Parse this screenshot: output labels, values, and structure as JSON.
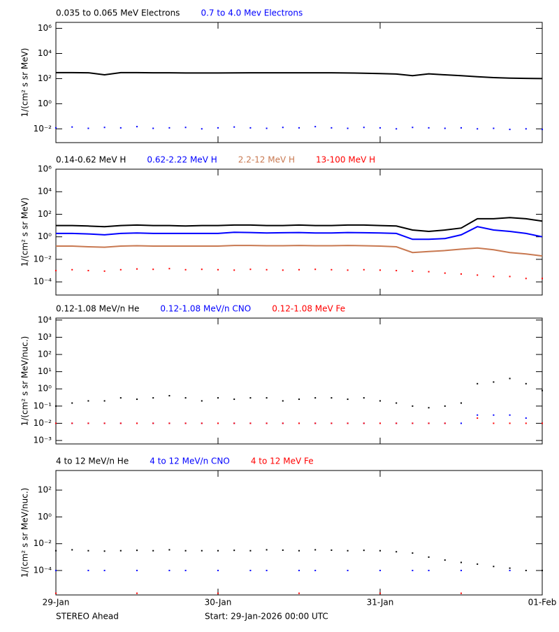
{
  "chart_data": [
    {
      "type": "scatter",
      "ylabel": "1/(cm² s sr MeV)",
      "log_y": true,
      "xlim": [
        0,
        3
      ],
      "ylim": [
        0.0008,
        3000000
      ],
      "yticks": [
        {
          "value": 1000000,
          "label": "10⁶"
        },
        {
          "value": 10000,
          "label": "10⁴"
        },
        {
          "value": 100,
          "label": "10²"
        },
        {
          "value": 1,
          "label": "10⁰"
        },
        {
          "value": 0.01,
          "label": "10⁻²"
        }
      ],
      "x": [
        0,
        0.1,
        0.2,
        0.3,
        0.4,
        0.5,
        0.6,
        0.7,
        0.8,
        0.9,
        1,
        1.1,
        1.2,
        1.3,
        1.4,
        1.5,
        1.6,
        1.7,
        1.8,
        1.9,
        2,
        2.1,
        2.2,
        2.3,
        2.4,
        2.5,
        2.6,
        2.7,
        2.8,
        2.9,
        3
      ],
      "series": [
        {
          "name": "0.035 to 0.065 MeV Electrons",
          "color": "#000000",
          "mode": "line",
          "values": [
            300,
            300,
            290,
            200,
            300,
            300,
            290,
            290,
            280,
            280,
            280,
            285,
            290,
            290,
            290,
            290,
            290,
            290,
            280,
            270,
            250,
            230,
            170,
            240,
            200,
            170,
            140,
            120,
            110,
            105,
            100
          ]
        },
        {
          "name": "0.7 to 4.0 Mev Electrons",
          "color": "#0000ff",
          "mode": "dots",
          "values": [
            0.012,
            0.014,
            0.011,
            0.013,
            0.012,
            0.015,
            0.011,
            0.012,
            0.013,
            0.01,
            0.012,
            0.014,
            0.012,
            0.011,
            0.013,
            0.012,
            0.015,
            0.012,
            0.011,
            0.013,
            0.012,
            0.01,
            0.013,
            0.012,
            0.011,
            0.012,
            0.01,
            0.011,
            0.009,
            0.01,
            0.009
          ]
        }
      ]
    },
    {
      "type": "scatter",
      "ylabel": "1/(cm² s sr MeV)",
      "log_y": true,
      "xlim": [
        0,
        3
      ],
      "ylim": [
        6.8e-06,
        1000000
      ],
      "yticks": [
        {
          "value": 1000000,
          "label": "10⁶"
        },
        {
          "value": 10000,
          "label": "10⁴"
        },
        {
          "value": 100,
          "label": "10²"
        },
        {
          "value": 1,
          "label": "10⁰"
        },
        {
          "value": 0.01,
          "label": "10⁻²"
        },
        {
          "value": 0.0001,
          "label": "10⁻⁴"
        }
      ],
      "x": [
        0,
        0.1,
        0.2,
        0.3,
        0.4,
        0.5,
        0.6,
        0.7,
        0.8,
        0.9,
        1,
        1.1,
        1.2,
        1.3,
        1.4,
        1.5,
        1.6,
        1.7,
        1.8,
        1.9,
        2,
        2.1,
        2.2,
        2.3,
        2.4,
        2.5,
        2.6,
        2.7,
        2.8,
        2.9,
        3
      ],
      "series": [
        {
          "name": "0.14-0.62 MeV H",
          "color": "#000000",
          "mode": "line",
          "values": [
            10,
            10,
            9,
            8,
            10,
            11,
            10,
            10,
            9,
            10,
            10,
            11,
            11,
            10,
            10,
            11,
            10,
            10,
            11,
            11,
            10,
            9,
            4,
            3,
            4,
            6,
            40,
            40,
            50,
            40,
            25
          ]
        },
        {
          "name": "0.62-2.22 MeV H",
          "color": "#0000ff",
          "mode": "line",
          "values": [
            2,
            2,
            1.8,
            1.5,
            2,
            2.2,
            2,
            2,
            2,
            2,
            2,
            2.5,
            2.4,
            2.2,
            2.3,
            2.4,
            2.2,
            2.2,
            2.4,
            2.3,
            2.2,
            2,
            0.6,
            0.6,
            0.7,
            1.5,
            8,
            4,
            3,
            2,
            1
          ]
        },
        {
          "name": "2.2-12 MeV H",
          "color": "#c87850",
          "mode": "line",
          "values": [
            0.15,
            0.15,
            0.13,
            0.12,
            0.15,
            0.16,
            0.15,
            0.15,
            0.15,
            0.15,
            0.15,
            0.17,
            0.17,
            0.16,
            0.16,
            0.17,
            0.16,
            0.16,
            0.17,
            0.16,
            0.15,
            0.13,
            0.04,
            0.05,
            0.06,
            0.08,
            0.1,
            0.07,
            0.04,
            0.03,
            0.02
          ]
        },
        {
          "name": "13-100 MeV H",
          "color": "#ff0000",
          "mode": "dots",
          "values": [
            0.001,
            0.0012,
            0.001,
            0.0009,
            0.0012,
            0.0014,
            0.0013,
            0.0015,
            0.0012,
            0.0013,
            0.0012,
            0.0011,
            0.0013,
            0.0012,
            0.0011,
            0.0012,
            0.0013,
            0.0012,
            0.0011,
            0.0012,
            0.0011,
            0.001,
            0.0009,
            0.0008,
            0.0006,
            0.0005,
            0.0004,
            0.0003,
            0.0003,
            0.0002,
            0.0002
          ]
        }
      ]
    },
    {
      "type": "scatter",
      "ylabel": "1/(cm² s sr MeV/nuc.)",
      "log_y": true,
      "xlim": [
        0,
        3
      ],
      "ylim": [
        0.00063,
        13000
      ],
      "yticks": [
        {
          "value": 10000,
          "label": "10⁴"
        },
        {
          "value": 1000,
          "label": "10³"
        },
        {
          "value": 100,
          "label": "10²"
        },
        {
          "value": 10,
          "label": "10¹"
        },
        {
          "value": 1,
          "label": "10⁰"
        },
        {
          "value": 0.1,
          "label": "10⁻¹"
        },
        {
          "value": 0.01,
          "label": "10⁻²"
        },
        {
          "value": 0.001,
          "label": "10⁻³"
        }
      ],
      "x": [
        0,
        0.1,
        0.2,
        0.3,
        0.4,
        0.5,
        0.6,
        0.7,
        0.8,
        0.9,
        1,
        1.1,
        1.2,
        1.3,
        1.4,
        1.5,
        1.6,
        1.7,
        1.8,
        1.9,
        2,
        2.1,
        2.2,
        2.3,
        2.4,
        2.5,
        2.6,
        2.7,
        2.8,
        2.9,
        3
      ],
      "series": [
        {
          "name": "0.12-1.08 MeV/n He",
          "color": "#000000",
          "mode": "dots",
          "values": [
            0.1,
            0.15,
            0.2,
            0.2,
            0.3,
            0.25,
            0.3,
            0.4,
            0.3,
            0.2,
            0.3,
            0.25,
            0.3,
            0.3,
            0.2,
            0.25,
            0.3,
            0.3,
            0.25,
            0.3,
            0.2,
            0.15,
            0.1,
            0.08,
            0.1,
            0.15,
            2,
            2.5,
            4,
            2,
            0.8
          ]
        },
        {
          "name": "0.12-1.08 MeV/n CNO",
          "color": "#0000ff",
          "mode": "dots",
          "values": [
            0.01,
            0.01,
            0.01,
            0.01,
            0.01,
            0.01,
            0.01,
            0.01,
            0.01,
            0.01,
            0.01,
            0.01,
            0.01,
            0.01,
            0.01,
            0.01,
            0.01,
            0.01,
            0.01,
            0.01,
            0.01,
            0.01,
            0.01,
            0.01,
            0.01,
            0.01,
            0.03,
            0.03,
            0.03,
            0.02,
            0.01
          ]
        },
        {
          "name": "0.12-1.08 MeV Fe",
          "color": "#ff0000",
          "mode": "dots",
          "values": [
            0.01,
            0.01,
            0.01,
            0.01,
            0.01,
            0.01,
            0.01,
            0.01,
            0.01,
            0.01,
            0.01,
            0.01,
            0.01,
            0.01,
            0.01,
            0.01,
            0.01,
            0.01,
            0.01,
            0.01,
            0.01,
            0.01,
            0.01,
            0.01,
            0.01,
            null,
            0.02,
            0.01,
            0.01,
            0.01,
            0.01
          ]
        }
      ]
    },
    {
      "type": "scatter",
      "ylabel": "1/(cm² s sr MeV/nuc.)",
      "log_y": true,
      "xlim": [
        0,
        3
      ],
      "ylim": [
        1.5e-06,
        2900
      ],
      "yticks": [
        {
          "value": 100,
          "label": "10²"
        },
        {
          "value": 1,
          "label": "10⁰"
        },
        {
          "value": 0.01,
          "label": "10⁻²"
        },
        {
          "value": 0.0001,
          "label": "10⁻⁴"
        }
      ],
      "xticks": [
        {
          "value": 0,
          "label": "29-Jan"
        },
        {
          "value": 1,
          "label": "30-Jan"
        },
        {
          "value": 2,
          "label": "31-Jan"
        },
        {
          "value": 3,
          "label": "01-Feb"
        }
      ],
      "x": [
        0,
        0.1,
        0.2,
        0.3,
        0.4,
        0.5,
        0.6,
        0.7,
        0.8,
        0.9,
        1,
        1.1,
        1.2,
        1.3,
        1.4,
        1.5,
        1.6,
        1.7,
        1.8,
        1.9,
        2,
        2.1,
        2.2,
        2.3,
        2.4,
        2.5,
        2.6,
        2.7,
        2.8,
        2.9,
        3
      ],
      "series": [
        {
          "name": "4 to 12 MeV/n He",
          "color": "#000000",
          "mode": "dots",
          "values": [
            0.003,
            0.0035,
            0.003,
            0.0028,
            0.003,
            0.0032,
            0.003,
            0.0035,
            0.003,
            0.003,
            0.003,
            0.0032,
            0.003,
            0.0035,
            0.0033,
            0.003,
            0.0035,
            0.0033,
            0.003,
            0.0032,
            0.003,
            0.0025,
            0.002,
            0.001,
            0.0006,
            0.0004,
            0.0003,
            0.0002,
            0.00015,
            0.0001,
            0.0001
          ]
        },
        {
          "name": "4 to 12 MeV/n CNO",
          "color": "#0000ff",
          "mode": "dots",
          "values": [
            0.0001,
            null,
            0.0001,
            0.0001,
            null,
            0.0001,
            null,
            0.0001,
            0.0001,
            null,
            0.0001,
            null,
            0.0001,
            0.0001,
            null,
            0.0001,
            0.0001,
            null,
            0.0001,
            null,
            0.0001,
            null,
            0.0001,
            0.0001,
            null,
            0.0001,
            null,
            null,
            0.0001,
            null,
            null
          ]
        },
        {
          "name": "4 to 12 MeV Fe",
          "color": "#ff0000",
          "mode": "dots",
          "values": [
            2e-06,
            null,
            null,
            null,
            null,
            2e-06,
            null,
            null,
            null,
            null,
            2e-06,
            null,
            null,
            null,
            null,
            2e-06,
            null,
            null,
            null,
            null,
            2e-06,
            null,
            null,
            null,
            null,
            2e-06,
            null,
            null,
            null,
            null,
            null
          ]
        }
      ]
    }
  ],
  "footer": {
    "spacecraft": "STEREO Ahead",
    "start": "Start: 29-Jan-2026 00:00 UTC"
  }
}
